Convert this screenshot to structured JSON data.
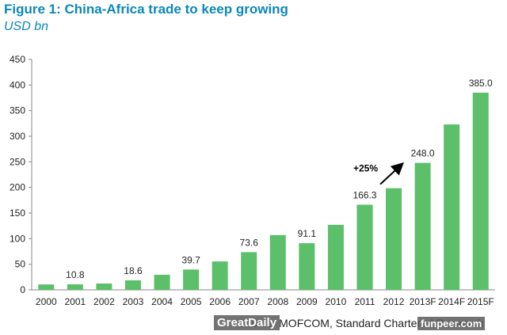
{
  "header": {
    "title": "Figure 1: China-Africa trade to keep growing",
    "subtitle": "USD bn"
  },
  "footer": {
    "source": "Source: MOFCOM, Standard Chartered Research"
  },
  "watermarks": {
    "left": "GreatDaily",
    "right": "funpeer.com"
  },
  "chart_data": {
    "type": "bar",
    "title": "Figure 1: China-Africa trade to keep growing",
    "ylabel": "USD bn",
    "xlabel": "",
    "ylim": [
      0,
      450
    ],
    "yticks": [
      0,
      50,
      100,
      150,
      200,
      250,
      300,
      350,
      400,
      450
    ],
    "grid": false,
    "bar_color": "#5cbf6a",
    "categories": [
      "2000",
      "2001",
      "2002",
      "2003",
      "2004",
      "2005",
      "2006",
      "2007",
      "2008",
      "2009",
      "2010",
      "2011",
      "2012",
      "2013F",
      "2014F",
      "2015F"
    ],
    "values": [
      10.6,
      10.8,
      12.4,
      18.6,
      29.5,
      39.7,
      55.5,
      73.6,
      107.0,
      91.1,
      127.0,
      166.3,
      198.5,
      248.0,
      323.0,
      385.0
    ],
    "data_labels": [
      null,
      "10.8",
      null,
      "18.6",
      null,
      "39.7",
      null,
      "73.6",
      null,
      "91.1",
      null,
      "166.3",
      null,
      "248.0",
      null,
      "385.0"
    ],
    "annotation": {
      "text": "+25%",
      "from_category": "2012",
      "to_category": "2013F"
    }
  }
}
